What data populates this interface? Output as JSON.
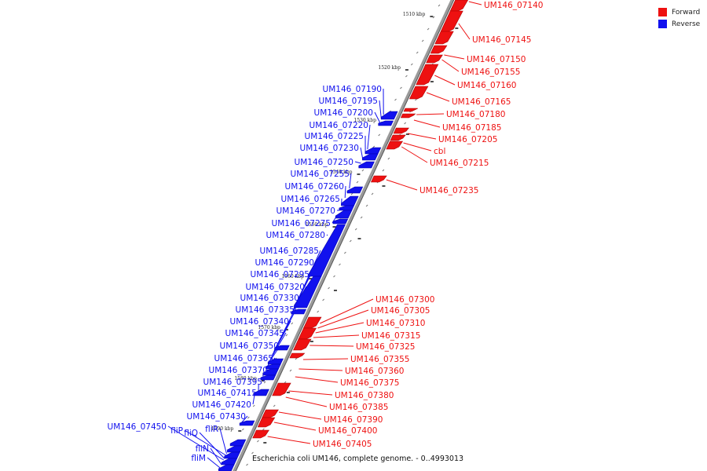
{
  "legend": {
    "forward": {
      "label": "Forward",
      "color": "#ee1111"
    },
    "reverse": {
      "label": "Reverse",
      "color": "#1111ee"
    }
  },
  "caption": "Escherichia coli UM146, complete genome. - 0..4993013",
  "scale_labels": [
    "1510 kbp",
    "1520 kbp",
    "1530 kbp",
    "1540 kbp",
    "1550 kbp",
    "1560 kbp",
    "1570 kbp",
    "1580 kbp",
    "1590 kbp"
  ],
  "forward_labels": [
    "UM146_07140",
    "UM146_07145",
    "UM146_07150",
    "UM146_07155",
    "UM146_07160",
    "UM146_07165",
    "UM146_07180",
    "UM146_07185",
    "UM146_07205",
    "cbl",
    "UM146_07215",
    "UM146_07235",
    "UM146_07300",
    "UM146_07305",
    "UM146_07310",
    "UM146_07315",
    "UM146_07325",
    "UM146_07355",
    "UM146_07360",
    "UM146_07375",
    "UM146_07380",
    "UM146_07385",
    "UM146_07390",
    "UM146_07400",
    "UM146_07405"
  ],
  "reverse_labels": [
    "UM146_07190",
    "UM146_07195",
    "UM146_07200",
    "UM146_07220",
    "UM146_07225",
    "UM146_07230",
    "UM146_07250",
    "UM146_07255",
    "UM146_07260",
    "UM146_07265",
    "UM146_07270",
    "UM146_07275",
    "UM146_07280",
    "UM146_07285",
    "UM146_07290",
    "UM146_07295",
    "UM146_07320",
    "UM146_07330",
    "UM146_07335",
    "UM146_07340",
    "UM146_07345",
    "UM146_07350",
    "UM146_07365",
    "UM146_07370",
    "UM146_07395",
    "UM146_07415",
    "UM146_07420",
    "UM146_07430",
    "UM146_07450",
    "fliP",
    "fliQ",
    "fliR",
    "fliN",
    "fliM"
  ]
}
